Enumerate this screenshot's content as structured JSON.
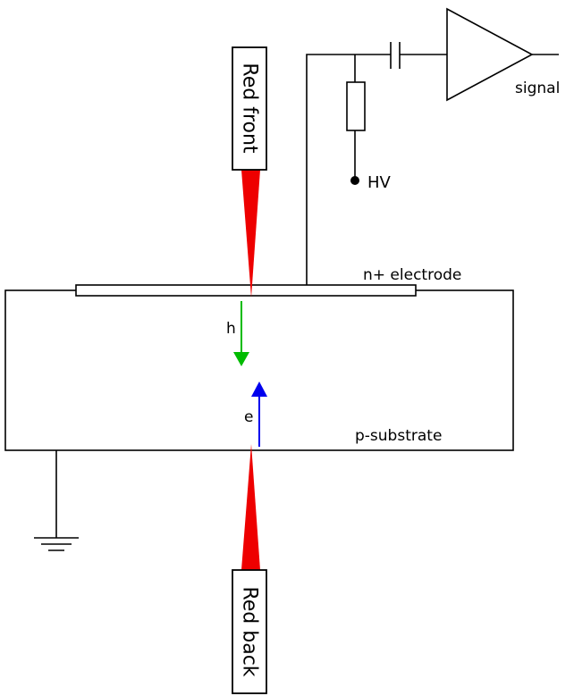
{
  "labels": {
    "laser_front": "Red front",
    "laser_back": "Red back",
    "signal": "signal",
    "hv": "HV",
    "electrode": "n+ electrode",
    "substrate": "p-substrate",
    "holes": "h",
    "electrons": "e"
  },
  "colors": {
    "laser": "#ee0000",
    "hole_arrow": "#00bb00",
    "electron_arrow": "#0000ee",
    "line": "#000000",
    "background": "#ffffff"
  }
}
